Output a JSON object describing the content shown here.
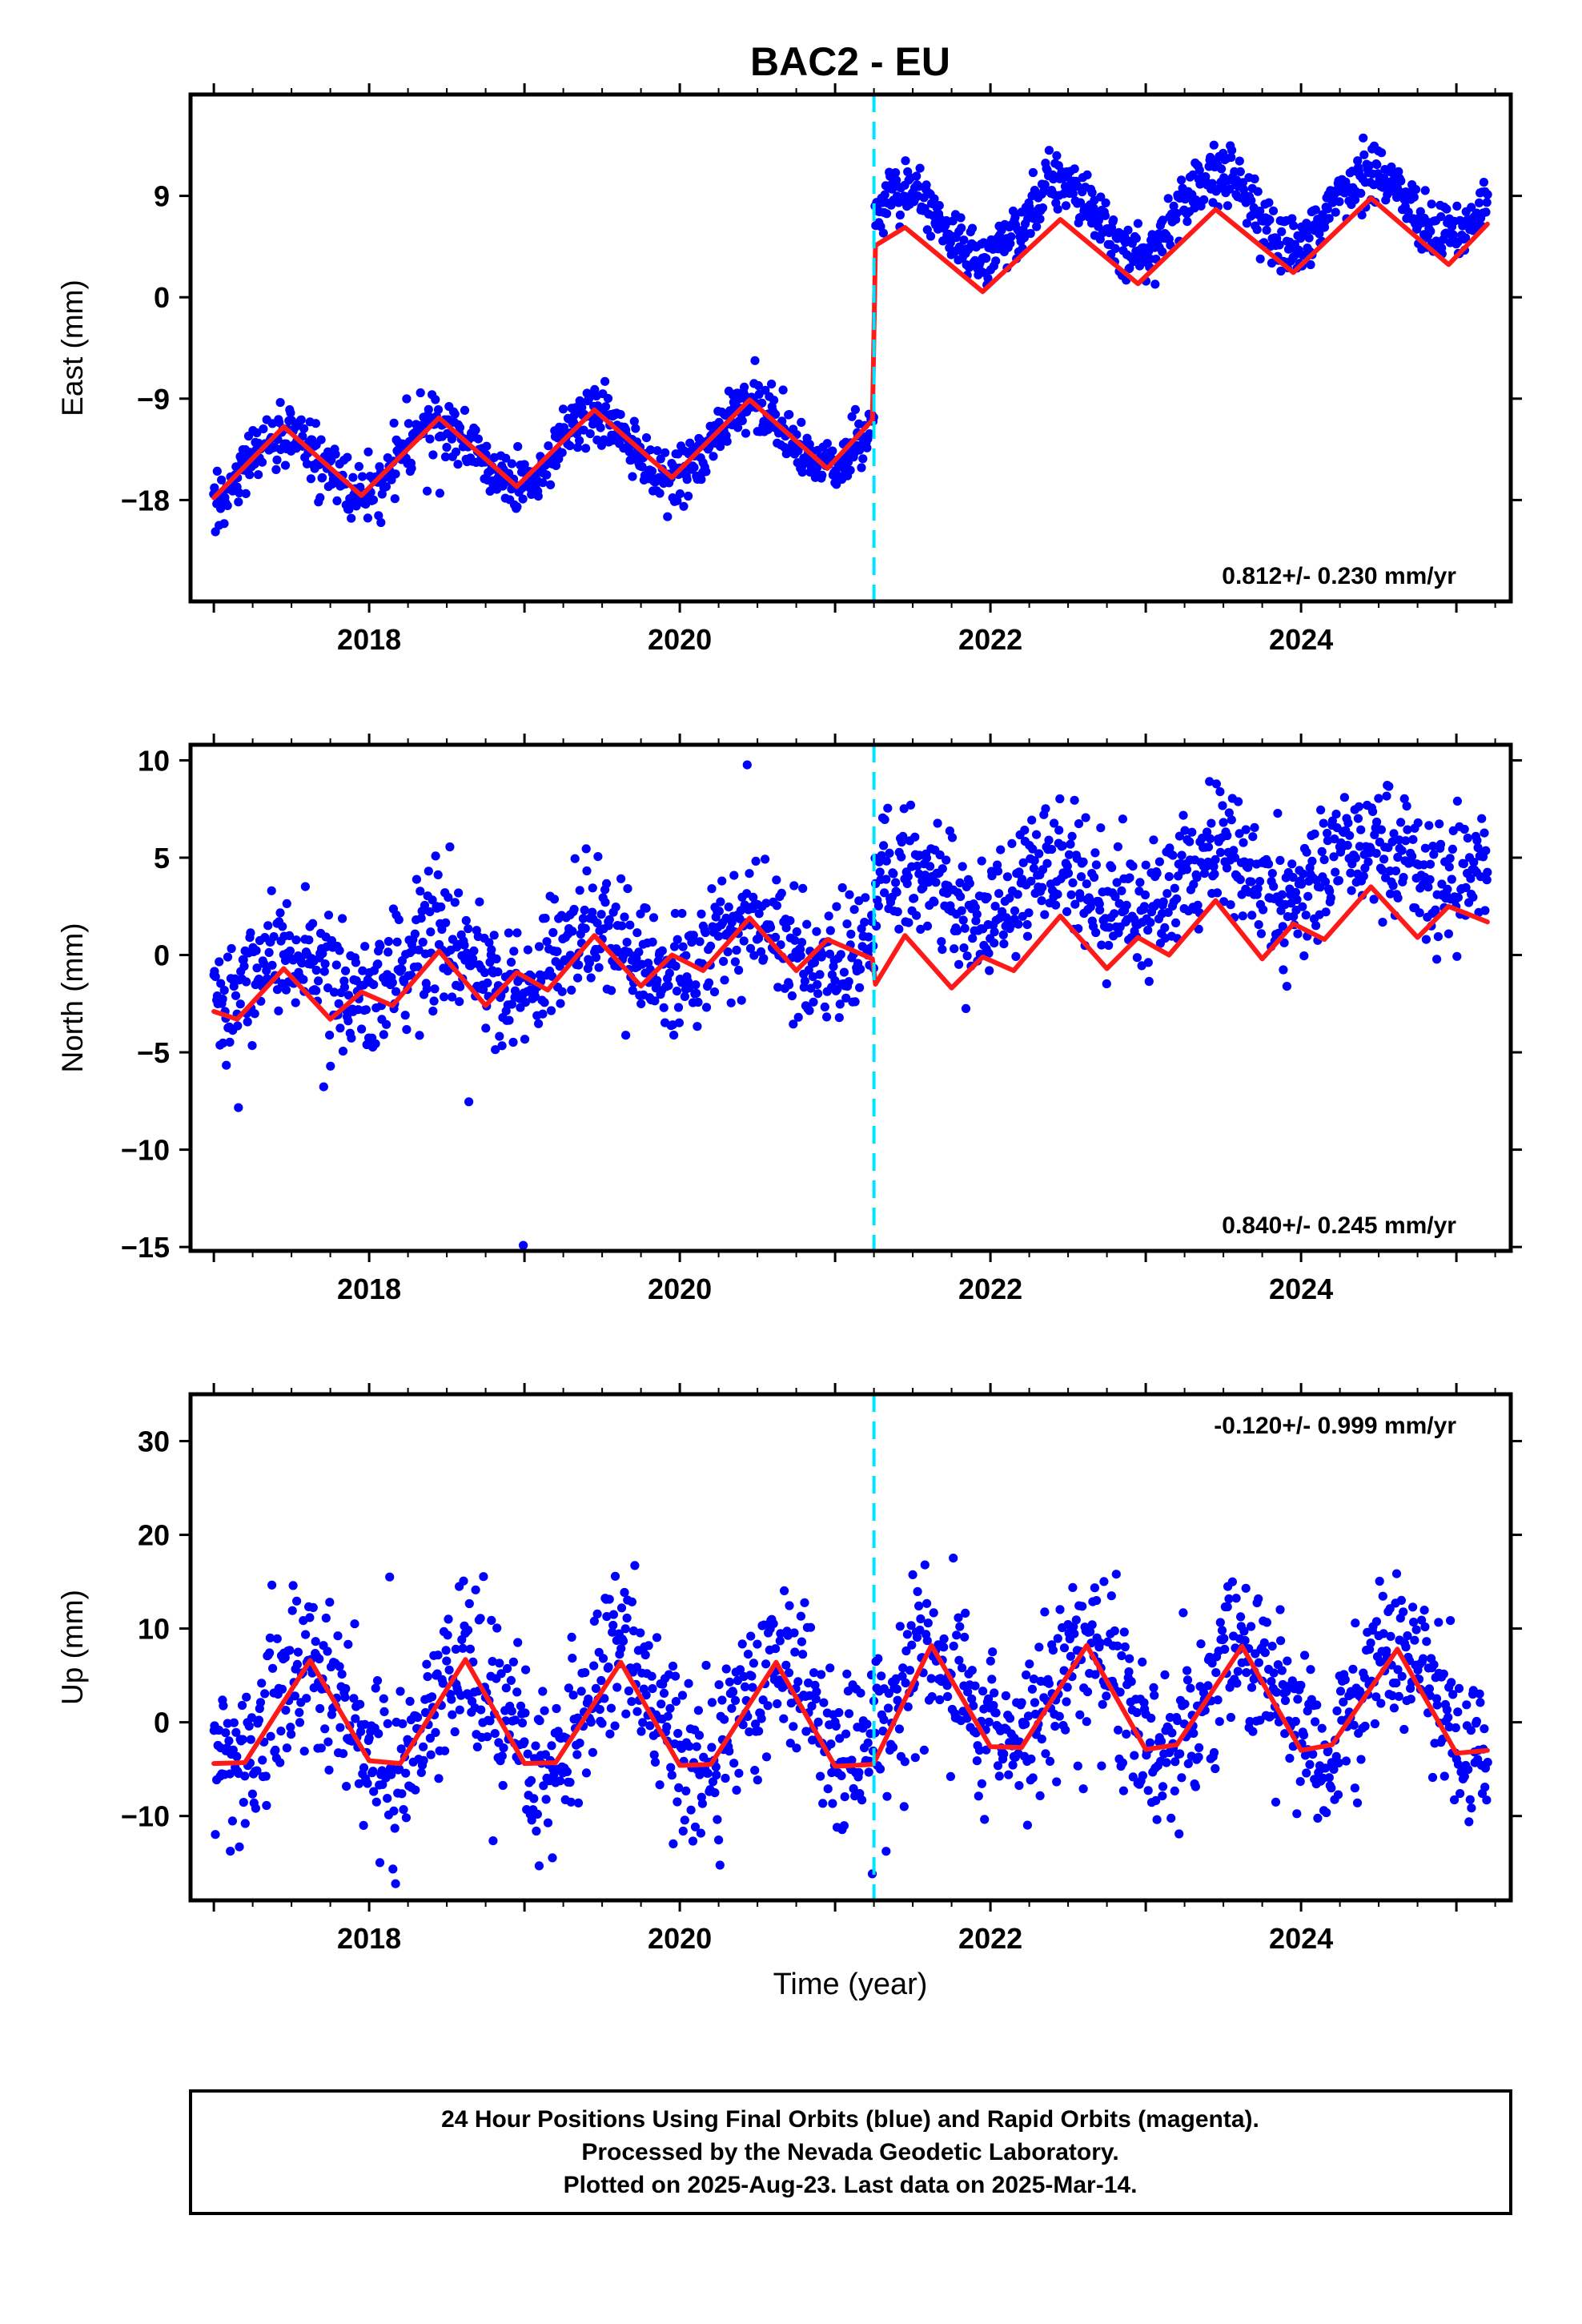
{
  "title": "BAC2 - EU",
  "colors": {
    "points": "#0000ff",
    "model": "#ff1a1a",
    "event_line": "#00e5ff",
    "frame": "#000000"
  },
  "xlabel": "Time (year)",
  "footer": {
    "lines": [
      "24 Hour Positions Using Final Orbits (blue) and Rapid Orbits (magenta).",
      "Processed by the Nevada Geodetic Laboratory.",
      "Plotted on 2025-Aug-23. Last data on 2025-Mar-14."
    ]
  },
  "chart_data": [
    {
      "type": "scatter",
      "ylabel": "East (mm)",
      "xlim": [
        2016.85,
        2025.35
      ],
      "ylim": [
        -27,
        18
      ],
      "yticks": [
        9,
        0,
        -9,
        -18
      ],
      "yticklabels": [
        "9",
        "0",
        "−9",
        "−18"
      ],
      "xticks": [
        2018,
        2020,
        2022,
        2024
      ],
      "xticklabels": [
        "2018",
        "2020",
        "2022",
        "2024"
      ],
      "event_x": 2021.25,
      "rate_label": "0.812+/- 0.230 mm/yr",
      "series": [
        {
          "kind": "points",
          "data_range": [
            2017.0,
            2025.2
          ],
          "model_pre": {
            "offset": -15.5,
            "trend": 0.9,
            "amplitude": 3.0,
            "phase_year": 2017.45
          },
          "model_post": {
            "offset": 3.6,
            "trend": 0.6,
            "amplitude": 3.0,
            "phase_year": 2022.45
          },
          "noise_sd": 1.3,
          "count": 1500
        },
        {
          "kind": "model_line",
          "segments": [
            {
              "x": [
                2017.0,
                2017.45,
                2017.95,
                2018.45,
                2018.95,
                2019.45,
                2019.95,
                2020.45,
                2020.95,
                2021.24
              ],
              "y": [
                -17.8,
                -11.5,
                -17.6,
                -10.7,
                -16.8,
                -10.0,
                -16.0,
                -9.1,
                -15.2,
                -10.9
              ]
            },
            {
              "x": [
                2021.26,
                2021.45,
                2021.95,
                2022.45,
                2022.95,
                2023.45,
                2023.95,
                2024.45,
                2024.95,
                2025.2
              ],
              "y": [
                4.6,
                6.2,
                0.5,
                6.9,
                1.2,
                7.8,
                2.2,
                8.8,
                2.9,
                6.5
              ]
            }
          ]
        }
      ]
    },
    {
      "type": "scatter",
      "ylabel": "North (mm)",
      "xlim": [
        2016.85,
        2025.35
      ],
      "ylim": [
        -15.2,
        10.8
      ],
      "yticks": [
        10,
        5,
        0,
        -5,
        -10,
        -15
      ],
      "yticklabels": [
        "10",
        "5",
        "0",
        "−5",
        "−10",
        "−15"
      ],
      "xticks": [
        2018,
        2020,
        2022,
        2024
      ],
      "xticklabels": [
        "2018",
        "2020",
        "2022",
        "2024"
      ],
      "event_x": 2021.25,
      "rate_label": "0.840+/- 0.245 mm/yr",
      "series": [
        {
          "kind": "points",
          "data_range": [
            2017.0,
            2025.2
          ],
          "model_pre": {
            "offset": -1.3,
            "trend": 0.5,
            "amplitude": 1.4,
            "phase_year": 2017.45
          },
          "model_post": {
            "offset": 0.4,
            "trend": 0.55,
            "amplitude": 1.5,
            "phase_year": 2022.45
          },
          "noise_sd": 1.6,
          "count": 1500
        },
        {
          "kind": "model_line",
          "segments": [
            {
              "x": [
                2017.0,
                2017.15,
                2017.45,
                2017.75,
                2017.95,
                2018.15,
                2018.45,
                2018.75,
                2018.95,
                2019.15,
                2019.45,
                2019.75,
                2019.95,
                2020.15,
                2020.45,
                2020.75,
                2020.95,
                2021.24
              ],
              "y": [
                -2.9,
                -3.3,
                -0.7,
                -3.3,
                -1.9,
                -2.6,
                0.2,
                -2.6,
                -0.9,
                -1.8,
                1.0,
                -1.6,
                0.0,
                -0.8,
                1.9,
                -0.8,
                0.8,
                -0.2
              ]
            },
            {
              "x": [
                2021.26,
                2021.45,
                2021.75,
                2021.95,
                2022.15,
                2022.45,
                2022.75,
                2022.95,
                2023.15,
                2023.45,
                2023.75,
                2023.95,
                2024.15,
                2024.45,
                2024.75,
                2024.95,
                2025.2
              ],
              "y": [
                -1.5,
                1.0,
                -1.7,
                -0.1,
                -0.8,
                2.0,
                -0.7,
                0.9,
                0.0,
                2.8,
                -0.2,
                1.6,
                0.8,
                3.5,
                0.9,
                2.5,
                1.7
              ]
            }
          ]
        }
      ]
    },
    {
      "type": "scatter",
      "ylabel": "Up (mm)",
      "xlim": [
        2016.85,
        2025.35
      ],
      "ylim": [
        -19,
        35
      ],
      "yticks": [
        30,
        20,
        10,
        0,
        -10
      ],
      "yticklabels": [
        "30",
        "20",
        "10",
        "0",
        "−10"
      ],
      "xticks": [
        2018,
        2020,
        2022,
        2024
      ],
      "xticklabels": [
        "2018",
        "2020",
        "2022",
        "2024"
      ],
      "event_x": 2021.25,
      "rate_label": "-0.120+/- 0.999 mm/yr",
      "series": [
        {
          "kind": "points",
          "data_range": [
            2017.0,
            2025.2
          ],
          "model_pre": {
            "offset": 0.8,
            "trend": 0.0,
            "amplitude": 5.6,
            "phase_year": 2017.62
          },
          "model_post": {
            "offset": 2.6,
            "trend": 0.0,
            "amplitude": 5.5,
            "phase_year": 2022.62
          },
          "noise_sd": 4.3,
          "count": 1450
        },
        {
          "kind": "model_line",
          "segments": [
            {
              "x": [
                2017.0,
                2017.2,
                2017.62,
                2018.0,
                2018.2,
                2018.62,
                2019.0,
                2019.2,
                2019.62,
                2020.0,
                2020.2,
                2020.62,
                2021.0,
                2021.24
              ],
              "y": [
                -4.4,
                -4.3,
                6.6,
                -4.1,
                -4.4,
                6.7,
                -4.4,
                -4.3,
                6.4,
                -4.6,
                -4.5,
                6.4,
                -4.7,
                -4.5
              ]
            },
            {
              "x": [
                2021.26,
                2021.62,
                2022.0,
                2022.2,
                2022.62,
                2023.0,
                2023.2,
                2023.62,
                2024.0,
                2024.2,
                2024.62,
                2025.0,
                2025.2
              ],
              "y": [
                -4.0,
                8.2,
                -2.6,
                -2.7,
                8.2,
                -2.9,
                -2.4,
                8.1,
                -3.0,
                -2.4,
                7.8,
                -3.3,
                -3.0
              ]
            }
          ]
        }
      ]
    }
  ]
}
